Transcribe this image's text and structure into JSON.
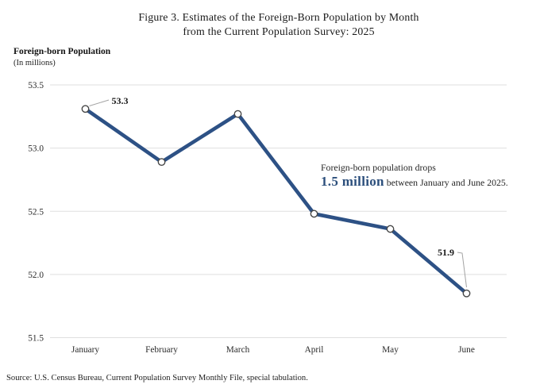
{
  "title": {
    "line1": "Figure 3. Estimates of the Foreign-Born Population by Month",
    "line2": "from the Current Population Survey: 2025"
  },
  "axis_header": {
    "title": "Foreign-born Population",
    "subtitle": "(In millions)"
  },
  "annotation": {
    "line1": "Foreign-born population drops",
    "highlight": "1.5 million",
    "rest": " between January and June 2025."
  },
  "source": "Source: U.S. Census Bureau, Current Population Survey Monthly File, special tabulation.",
  "chart_data": {
    "type": "line",
    "title": "Figure 3. Estimates of the Foreign-Born Population by Month from the Current Population Survey: 2025",
    "xlabel": "",
    "ylabel": "Foreign-born Population (In millions)",
    "categories": [
      "January",
      "February",
      "March",
      "April",
      "May",
      "June"
    ],
    "series": [
      {
        "name": "Foreign-born population",
        "values": [
          53.31,
          52.89,
          53.27,
          52.48,
          52.36,
          51.85
        ]
      }
    ],
    "point_labels": [
      {
        "index": 0,
        "text": "53.3"
      },
      {
        "index": 5,
        "text": "51.9"
      }
    ],
    "yticks": [
      "53.5",
      "53.0",
      "52.5",
      "52.0",
      "51.5"
    ],
    "ytick_values": [
      53.5,
      53.0,
      52.5,
      52.0,
      51.5
    ],
    "ylim": [
      51.5,
      53.5
    ],
    "grid": true,
    "legend": "none",
    "marker": "open-circle"
  },
  "colors": {
    "line": "#2d5185",
    "annotation_highlight": "#2c4f7c",
    "grid": "#dfdfdf",
    "marker_fill": "#ffffff",
    "marker_stroke": "#474747",
    "leader": "#a3a3a3",
    "tick_text": "#2b2b2b",
    "callout_text": "#1a1a1a"
  }
}
